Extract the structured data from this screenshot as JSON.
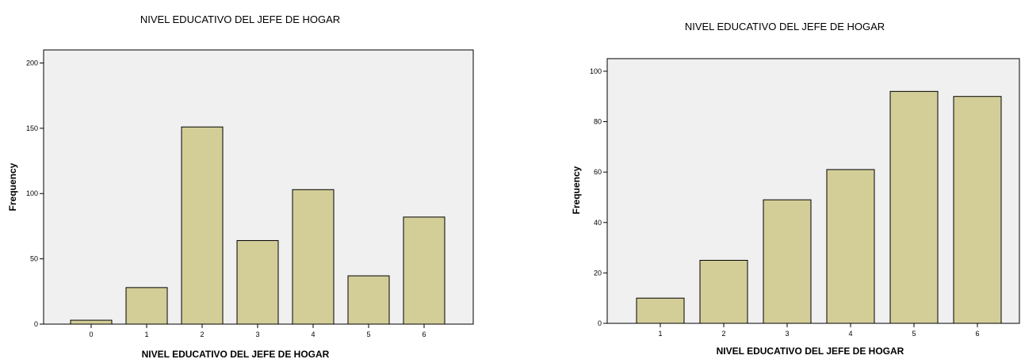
{
  "chart_data": [
    {
      "type": "bar",
      "title": "NIVEL EDUCATIVO DEL JEFE DE HOGAR",
      "xlabel": "NIVEL EDUCATIVO DEL JEFE DE HOGAR",
      "ylabel": "Frequency",
      "categories": [
        "0",
        "1",
        "2",
        "3",
        "4",
        "5",
        "6"
      ],
      "values": [
        3,
        28,
        151,
        64,
        103,
        37,
        82
      ],
      "ylim": [
        0,
        210
      ],
      "yticks": [
        "0",
        "50",
        "100",
        "150",
        "200"
      ],
      "grid": false,
      "bar_color": "#d3ce98",
      "plot_background": "#f0f0f0"
    },
    {
      "type": "bar",
      "title": "NIVEL EDUCATIVO DEL JEFE DE HOGAR",
      "xlabel": "NIVEL EDUCATIVO DEL JEFE DE HOGAR",
      "ylabel": "Frequency",
      "categories": [
        "1",
        "2",
        "3",
        "4",
        "5",
        "6"
      ],
      "values": [
        10,
        25,
        49,
        61,
        92,
        90
      ],
      "ylim": [
        0,
        105
      ],
      "yticks": [
        "0",
        "20",
        "40",
        "60",
        "80",
        "100"
      ],
      "grid": false,
      "bar_color": "#d3ce98",
      "plot_background": "#f0f0f0"
    }
  ]
}
